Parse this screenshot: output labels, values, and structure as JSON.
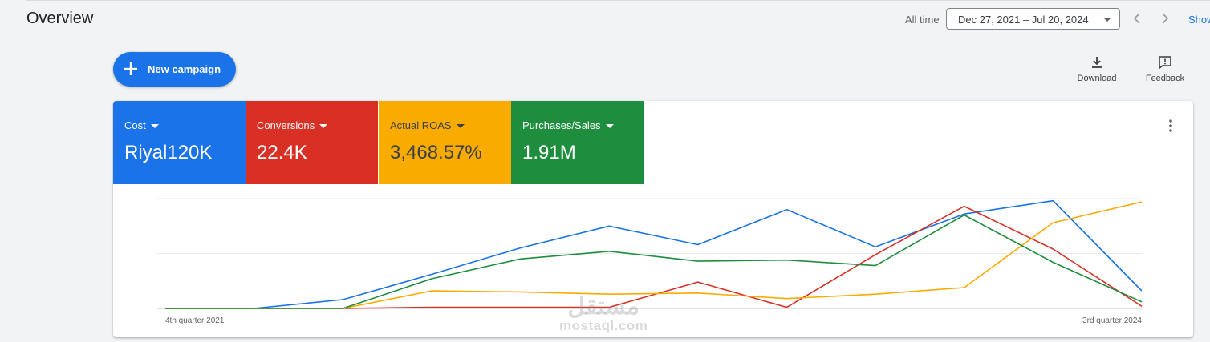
{
  "header": {
    "title": "Overview",
    "range_label": "All time",
    "date_range": "Dec 27, 2021 – Jul 20, 2024",
    "show_link": "Show"
  },
  "actions": {
    "new_campaign": "New campaign",
    "download": "Download",
    "feedback": "Feedback"
  },
  "metrics": [
    {
      "name": "Cost",
      "value": "Riyal120K",
      "color": "#1a73e8"
    },
    {
      "name": "Conversions",
      "value": "22.4K",
      "color": "#d93025"
    },
    {
      "name": "Actual ROAS",
      "value": "3,468.57%",
      "color": "#f9ab00"
    },
    {
      "name": "Purchases/Sales",
      "value": "1.91M",
      "color": "#1e8e3e"
    }
  ],
  "watermark": {
    "arabic": "مستقل",
    "latin": "mostaql.com"
  },
  "chart_data": {
    "type": "line",
    "x_start_label": "4th quarter 2021",
    "x_end_label": "3rd quarter 2024",
    "ylim": [
      0,
      1
    ],
    "grid": true,
    "series": [
      {
        "name": "Cost",
        "color": "#1a73e8",
        "values": [
          0.0,
          0.0,
          0.08,
          0.31,
          0.55,
          0.75,
          0.58,
          0.9,
          0.56,
          0.86,
          0.98,
          0.16
        ]
      },
      {
        "name": "Conversions",
        "color": "#d93025",
        "values": [
          0.0,
          0.0,
          0.0,
          0.01,
          0.01,
          0.01,
          0.24,
          0.01,
          0.49,
          0.93,
          0.54,
          0.02
        ]
      },
      {
        "name": "Actual ROAS",
        "color": "#f9ab00",
        "values": [
          0.0,
          0.0,
          0.0,
          0.16,
          0.15,
          0.13,
          0.14,
          0.09,
          0.13,
          0.19,
          0.78,
          0.97
        ]
      },
      {
        "name": "Purchases/Sales",
        "color": "#1e8e3e",
        "values": [
          0.0,
          0.0,
          0.0,
          0.27,
          0.45,
          0.52,
          0.43,
          0.44,
          0.39,
          0.85,
          0.42,
          0.06
        ]
      }
    ]
  }
}
